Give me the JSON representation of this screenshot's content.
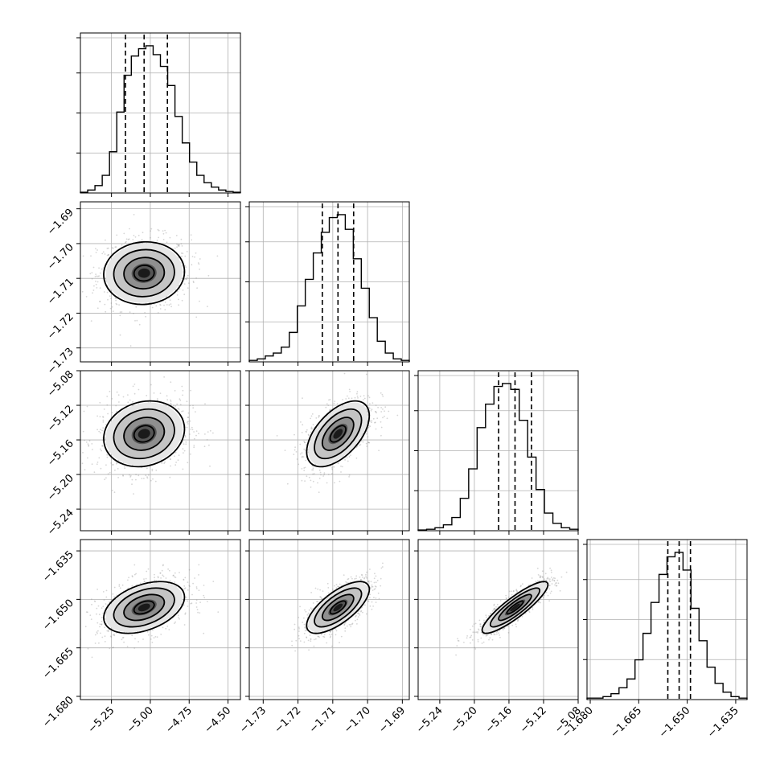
{
  "chart_data": {
    "type": "corner",
    "grid": true,
    "parameters": [
      {
        "index": 0,
        "range": [
          -5.45,
          -4.42
        ],
        "ticks": [
          -5.25,
          -5.0,
          -4.75,
          -4.5
        ],
        "tick_labels": [
          "−5.25",
          "−5.00",
          "−4.75",
          "−4.50"
        ],
        "mean": -5.04,
        "sd": 0.13,
        "quantiles": [
          -5.16,
          -5.04,
          -4.89
        ]
      },
      {
        "index": 1,
        "range": [
          -1.734,
          -1.688
        ],
        "ticks": [
          -1.73,
          -1.72,
          -1.71,
          -1.7,
          -1.69
        ],
        "tick_labels": [
          "−1.73",
          "−1.72",
          "−1.71",
          "−1.70",
          "−1.69"
        ],
        "mean": -1.7085,
        "sd": 0.0045,
        "quantiles": [
          -1.713,
          -1.7085,
          -1.704
        ]
      },
      {
        "index": 2,
        "range": [
          -5.265,
          -5.08
        ],
        "ticks": [
          -5.24,
          -5.2,
          -5.16,
          -5.12,
          -5.08
        ],
        "tick_labels": [
          "−5.24",
          "−5.20",
          "−5.16",
          "−5.12",
          "−5.08"
        ],
        "mean": -5.153,
        "sd": 0.019,
        "quantiles": [
          -5.172,
          -5.153,
          -5.134
        ]
      },
      {
        "index": 3,
        "range": [
          -1.681,
          -1.6315
        ],
        "ticks": [
          -1.68,
          -1.665,
          -1.65,
          -1.635
        ],
        "tick_labels": [
          "−1.680",
          "−1.665",
          "−1.650",
          "−1.635"
        ],
        "mean": -1.6525,
        "sd": 0.004,
        "quantiles": [
          -1.656,
          -1.6525,
          -1.649
        ]
      }
    ],
    "histograms": [
      {
        "param": 0,
        "heights": [
          0.005,
          0.02,
          0.05,
          0.12,
          0.28,
          0.55,
          0.8,
          0.93,
          0.98,
          1.0,
          0.94,
          0.86,
          0.73,
          0.52,
          0.34,
          0.21,
          0.12,
          0.07,
          0.04,
          0.02,
          0.01,
          0.005
        ]
      },
      {
        "param": 1,
        "heights": [
          0.01,
          0.02,
          0.04,
          0.06,
          0.1,
          0.2,
          0.38,
          0.56,
          0.74,
          0.88,
          0.98,
          1.0,
          0.9,
          0.7,
          0.5,
          0.3,
          0.14,
          0.06,
          0.02,
          0.01
        ]
      },
      {
        "param": 2,
        "heights": [
          0.005,
          0.01,
          0.02,
          0.04,
          0.09,
          0.22,
          0.42,
          0.7,
          0.86,
          0.98,
          1.0,
          0.96,
          0.75,
          0.5,
          0.28,
          0.12,
          0.05,
          0.02,
          0.01
        ]
      },
      {
        "param": 3,
        "heights": [
          0.01,
          0.01,
          0.02,
          0.04,
          0.08,
          0.14,
          0.27,
          0.45,
          0.66,
          0.85,
          0.97,
          1.0,
          0.88,
          0.62,
          0.4,
          0.22,
          0.11,
          0.05,
          0.02,
          0.01
        ]
      }
    ],
    "correlations": [
      {
        "x": 0,
        "y": 1,
        "rho": 0.05
      },
      {
        "x": 0,
        "y": 2,
        "rho": 0.15
      },
      {
        "x": 1,
        "y": 2,
        "rho": 0.55
      },
      {
        "x": 0,
        "y": 3,
        "rho": 0.4
      },
      {
        "x": 1,
        "y": 3,
        "rho": 0.7
      },
      {
        "x": 2,
        "y": 3,
        "rho": 0.88
      }
    ],
    "contour_levels_sigma": [
      0.5,
      1.0,
      1.5,
      2.0
    ]
  }
}
